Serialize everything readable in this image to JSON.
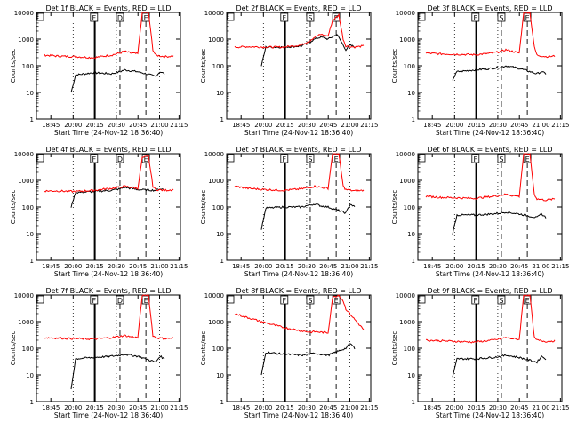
{
  "chart_data": [
    {
      "type": "line",
      "title": "Det 1f BLACK = Events, RED = LLD",
      "xlabel": "Start Time (24-Nov-12 18:36:40)",
      "ylabel": "Counts/sec",
      "xticks": [
        "18:45",
        "20:00",
        "20:15",
        "20:30",
        "20:45",
        "21:00",
        "21:15"
      ],
      "yticks": [
        "1",
        "10",
        "100",
        "1000",
        "10000"
      ],
      "ylim": [
        1,
        10000
      ],
      "yscale": "log",
      "markers": [
        "F",
        "D",
        "E"
      ],
      "series": [
        {
          "name": "BLACK = Events",
          "color": "#000000",
          "x": [
            "19:15",
            "19:20",
            "19:40",
            "20:00",
            "20:10",
            "20:15",
            "20:22",
            "20:30",
            "20:50",
            "20:55",
            "21:00"
          ],
          "values": [
            10,
            45,
            55,
            50,
            60,
            70,
            65,
            60,
            40,
            60,
            50
          ]
        },
        {
          "name": "RED = LLD",
          "color": "#ff0000",
          "x": [
            "18:45",
            "19:00",
            "19:20",
            "19:40",
            "20:00",
            "20:10",
            "20:15",
            "20:22",
            "20:30",
            "20:35",
            "20:42",
            "20:47",
            "20:50",
            "21:00",
            "21:10"
          ],
          "values": [
            250,
            230,
            220,
            200,
            250,
            300,
            350,
            300,
            280,
            10000,
            10000,
            400,
            250,
            220,
            230
          ]
        }
      ]
    },
    {
      "type": "line",
      "title": "Det 2f BLACK = Events, RED = LLD",
      "xlabel": "Start Time (24-Nov-12 18:36:40)",
      "ylabel": "Counts/sec",
      "xticks": [
        "18:45",
        "20:00",
        "20:15",
        "20:30",
        "20:45",
        "21:00",
        "21:15"
      ],
      "yticks": [
        "1",
        "10",
        "100",
        "1000",
        "10000"
      ],
      "ylim": [
        1,
        10000
      ],
      "yscale": "log",
      "markers": [
        "F",
        "S",
        "E"
      ],
      "series": [
        {
          "name": "BLACK = Events",
          "color": "#000000",
          "x": [
            "19:15",
            "19:20",
            "19:40",
            "20:00",
            "20:10",
            "20:15",
            "20:22",
            "20:30",
            "20:40",
            "20:50",
            "20:55",
            "21:00"
          ],
          "values": [
            100,
            500,
            500,
            550,
            800,
            1000,
            1200,
            1000,
            1500,
            400,
            600,
            500
          ]
        },
        {
          "name": "RED = LLD",
          "color": "#ff0000",
          "x": [
            "18:45",
            "19:00",
            "19:20",
            "19:40",
            "20:00",
            "20:10",
            "20:15",
            "20:22",
            "20:30",
            "20:35",
            "20:42",
            "20:47",
            "20:50",
            "21:00",
            "21:10"
          ],
          "values": [
            500,
            520,
            500,
            500,
            600,
            900,
            1200,
            1500,
            1300,
            5000,
            8000,
            1000,
            550,
            500,
            550
          ]
        }
      ]
    },
    {
      "type": "line",
      "title": "Det 3f BLACK = Events, RED = LLD",
      "xlabel": "Start Time (24-Nov-12 18:36:40)",
      "ylabel": "Counts/sec",
      "xticks": [
        "18:45",
        "20:00",
        "20:15",
        "20:30",
        "20:45",
        "21:00",
        "21:15"
      ],
      "yticks": [
        "1",
        "10",
        "100",
        "1000",
        "10000"
      ],
      "ylim": [
        1,
        10000
      ],
      "yscale": "log",
      "markers": [
        "F",
        "S",
        "E"
      ],
      "series": [
        {
          "name": "BLACK = Events",
          "color": "#000000",
          "x": [
            "19:15",
            "19:20",
            "19:40",
            "20:00",
            "20:10",
            "20:15",
            "20:22",
            "20:30",
            "20:50",
            "20:55",
            "21:00"
          ],
          "values": [
            30,
            60,
            70,
            80,
            90,
            100,
            90,
            80,
            50,
            60,
            50
          ]
        },
        {
          "name": "RED = LLD",
          "color": "#ff0000",
          "x": [
            "18:45",
            "19:00",
            "19:20",
            "19:40",
            "20:00",
            "20:10",
            "20:15",
            "20:22",
            "20:30",
            "20:35",
            "20:42",
            "20:47",
            "20:50",
            "21:00",
            "21:10"
          ],
          "values": [
            300,
            280,
            270,
            260,
            300,
            350,
            400,
            350,
            300,
            10000,
            10000,
            500,
            250,
            220,
            230
          ]
        }
      ]
    },
    {
      "type": "line",
      "title": "Det 4f BLACK = Events, RED = LLD",
      "xlabel": "Start Time (24-Nov-12 18:36:40)",
      "ylabel": "Counts/sec",
      "xticks": [
        "18:45",
        "20:00",
        "20:15",
        "20:30",
        "20:45",
        "21:00",
        "21:15"
      ],
      "yticks": [
        "1",
        "10",
        "100",
        "1000",
        "10000"
      ],
      "ylim": [
        1,
        10000
      ],
      "yscale": "log",
      "markers": [
        "F",
        "D",
        "E"
      ],
      "series": [
        {
          "name": "BLACK = Events",
          "color": "#000000",
          "x": [
            "19:15",
            "19:20",
            "19:40",
            "20:00",
            "20:10",
            "20:15",
            "20:22",
            "20:30",
            "20:50",
            "20:55",
            "21:00"
          ],
          "values": [
            100,
            350,
            380,
            420,
            480,
            550,
            500,
            450,
            420,
            480,
            450
          ]
        },
        {
          "name": "RED = LLD",
          "color": "#ff0000",
          "x": [
            "18:45",
            "19:00",
            "19:20",
            "19:40",
            "20:00",
            "20:10",
            "20:15",
            "20:22",
            "20:30",
            "20:35",
            "20:42",
            "20:47",
            "20:50",
            "21:00",
            "21:10"
          ],
          "values": [
            400,
            400,
            380,
            420,
            500,
            550,
            600,
            550,
            500,
            7000,
            8000,
            600,
            450,
            420,
            450
          ]
        }
      ]
    },
    {
      "type": "line",
      "title": "Det 5f BLACK = Events, RED = LLD",
      "xlabel": "Start Time (24-Nov-12 18:36:40)",
      "ylabel": "Counts/sec",
      "xticks": [
        "18:45",
        "20:00",
        "20:15",
        "20:30",
        "20:45",
        "21:00",
        "21:15"
      ],
      "yticks": [
        "1",
        "10",
        "100",
        "1000",
        "10000"
      ],
      "ylim": [
        1,
        10000
      ],
      "yscale": "log",
      "markers": [
        "F",
        "S",
        "E"
      ],
      "series": [
        {
          "name": "BLACK = Events",
          "color": "#000000",
          "x": [
            "19:15",
            "19:20",
            "19:40",
            "20:00",
            "20:10",
            "20:15",
            "20:22",
            "20:30",
            "20:50",
            "20:55",
            "21:00"
          ],
          "values": [
            15,
            90,
            100,
            100,
            120,
            130,
            110,
            100,
            60,
            130,
            100
          ]
        },
        {
          "name": "RED = LLD",
          "color": "#ff0000",
          "x": [
            "18:45",
            "19:00",
            "19:20",
            "19:40",
            "20:00",
            "20:10",
            "20:15",
            "20:22",
            "20:30",
            "20:35",
            "20:42",
            "20:47",
            "20:50",
            "21:00",
            "21:10"
          ],
          "values": [
            600,
            500,
            450,
            420,
            480,
            550,
            600,
            550,
            500,
            10000,
            10000,
            600,
            450,
            400,
            420
          ]
        }
      ]
    },
    {
      "type": "line",
      "title": "Det 6f BLACK = Events, RED = LLD",
      "xlabel": "Start Time (24-Nov-12 18:36:40)",
      "ylabel": "Counts/sec",
      "xticks": [
        "18:45",
        "20:00",
        "20:15",
        "20:30",
        "20:45",
        "21:00",
        "21:15"
      ],
      "yticks": [
        "1",
        "10",
        "100",
        "1000",
        "10000"
      ],
      "ylim": [
        1,
        10000
      ],
      "yscale": "log",
      "markers": [
        "F",
        "S",
        "E"
      ],
      "series": [
        {
          "name": "BLACK = Events",
          "color": "#000000",
          "x": [
            "19:15",
            "19:20",
            "19:40",
            "20:00",
            "20:10",
            "20:15",
            "20:22",
            "20:30",
            "20:50",
            "20:55",
            "21:00"
          ],
          "values": [
            10,
            50,
            50,
            55,
            60,
            65,
            60,
            55,
            40,
            55,
            40
          ]
        },
        {
          "name": "RED = LLD",
          "color": "#ff0000",
          "x": [
            "18:45",
            "19:00",
            "19:20",
            "19:40",
            "20:00",
            "20:10",
            "20:15",
            "20:22",
            "20:30",
            "20:35",
            "20:42",
            "20:47",
            "20:50",
            "21:00",
            "21:10"
          ],
          "values": [
            250,
            230,
            220,
            210,
            250,
            280,
            300,
            270,
            250,
            10000,
            10000,
            300,
            200,
            180,
            200
          ]
        }
      ]
    },
    {
      "type": "line",
      "title": "Det 7f BLACK = Events, RED = LLD",
      "xlabel": "Start Time (24-Nov-12 18:36:40)",
      "ylabel": "Counts/sec",
      "xticks": [
        "18:45",
        "20:00",
        "20:15",
        "20:30",
        "20:45",
        "21:00",
        "21:15"
      ],
      "yticks": [
        "1",
        "10",
        "100",
        "1000",
        "10000"
      ],
      "ylim": [
        1,
        10000
      ],
      "yscale": "log",
      "markers": [
        "F",
        "D",
        "E"
      ],
      "series": [
        {
          "name": "BLACK = Events",
          "color": "#000000",
          "x": [
            "19:15",
            "19:20",
            "19:40",
            "20:00",
            "20:10",
            "20:15",
            "20:22",
            "20:30",
            "20:50",
            "20:55",
            "21:00"
          ],
          "values": [
            3,
            40,
            45,
            50,
            55,
            60,
            55,
            50,
            30,
            50,
            40
          ]
        },
        {
          "name": "RED = LLD",
          "color": "#ff0000",
          "x": [
            "18:45",
            "19:00",
            "19:20",
            "19:40",
            "20:00",
            "20:10",
            "20:15",
            "20:22",
            "20:30",
            "20:35",
            "20:42",
            "20:47",
            "20:50",
            "21:00",
            "21:10"
          ],
          "values": [
            250,
            240,
            230,
            220,
            250,
            280,
            300,
            270,
            250,
            10000,
            10000,
            300,
            250,
            230,
            240
          ]
        }
      ]
    },
    {
      "type": "line",
      "title": "Det 8f BLACK = Events, RED = LLD",
      "xlabel": "Start Time (24-Nov-12 18:36:40)",
      "ylabel": "Counts/sec",
      "xticks": [
        "18:45",
        "20:00",
        "20:15",
        "20:30",
        "20:45",
        "21:00",
        "21:15"
      ],
      "yticks": [
        "1",
        "10",
        "100",
        "1000",
        "10000"
      ],
      "ylim": [
        1,
        10000
      ],
      "yscale": "log",
      "markers": [
        "F",
        "S",
        "E"
      ],
      "series": [
        {
          "name": "BLACK = Events",
          "color": "#000000",
          "x": [
            "19:15",
            "19:20",
            "19:40",
            "20:00",
            "20:10",
            "20:15",
            "20:22",
            "20:30",
            "20:50",
            "20:55",
            "21:00"
          ],
          "values": [
            10,
            70,
            60,
            55,
            60,
            65,
            60,
            55,
            100,
            150,
            100
          ]
        },
        {
          "name": "RED = LLD",
          "color": "#ff0000",
          "x": [
            "18:45",
            "19:00",
            "19:20",
            "19:40",
            "20:00",
            "20:10",
            "20:15",
            "20:22",
            "20:30",
            "20:35",
            "20:42",
            "20:47",
            "20:50",
            "21:00",
            "21:10"
          ],
          "values": [
            2000,
            1400,
            900,
            600,
            450,
            400,
            420,
            400,
            380,
            8000,
            10000,
            6000,
            3000,
            1200,
            500
          ]
        }
      ]
    },
    {
      "type": "line",
      "title": "Det 9f BLACK = Events, RED = LLD",
      "xlabel": "Start Time (24-Nov-12 18:36:40)",
      "ylabel": "Counts/sec",
      "xticks": [
        "18:45",
        "20:00",
        "20:15",
        "20:30",
        "20:45",
        "21:00",
        "21:15"
      ],
      "yticks": [
        "1",
        "10",
        "100",
        "1000",
        "10000"
      ],
      "ylim": [
        1,
        10000
      ],
      "yscale": "log",
      "markers": [
        "F",
        "S",
        "E"
      ],
      "series": [
        {
          "name": "BLACK = Events",
          "color": "#000000",
          "x": [
            "19:15",
            "19:20",
            "19:40",
            "20:00",
            "20:10",
            "20:15",
            "20:22",
            "20:30",
            "20:50",
            "20:55",
            "21:00"
          ],
          "values": [
            8,
            40,
            40,
            45,
            50,
            55,
            50,
            45,
            30,
            50,
            40
          ]
        },
        {
          "name": "RED = LLD",
          "color": "#ff0000",
          "x": [
            "18:45",
            "19:00",
            "19:20",
            "19:40",
            "20:00",
            "20:10",
            "20:15",
            "20:22",
            "20:30",
            "20:35",
            "20:42",
            "20:47",
            "20:50",
            "21:00",
            "21:10"
          ],
          "values": [
            200,
            190,
            180,
            170,
            200,
            230,
            250,
            230,
            210,
            10000,
            10000,
            250,
            200,
            180,
            190
          ]
        }
      ]
    }
  ]
}
